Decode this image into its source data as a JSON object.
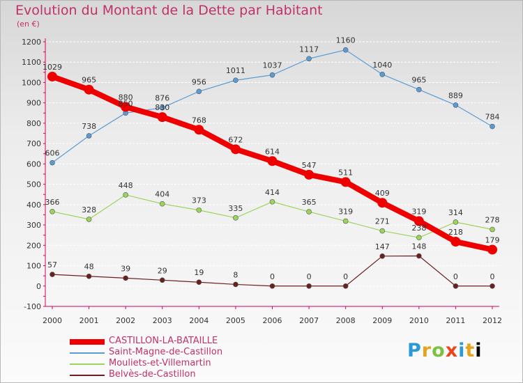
{
  "chart_data": {
    "type": "line",
    "title": "Evolution du Montant de la Dette par Habitant",
    "subtitle": "(en €)",
    "x": [
      "2000",
      "2001",
      "2002",
      "2003",
      "2004",
      "2005",
      "2006",
      "2007",
      "2008",
      "2009",
      "2010",
      "2011",
      "2012"
    ],
    "ylim": [
      -100,
      1200
    ],
    "yticks": [
      -100,
      0,
      100,
      200,
      300,
      400,
      500,
      600,
      700,
      800,
      900,
      1000,
      1100,
      1200
    ],
    "grid": true,
    "legend_position": "bottom-left",
    "series": [
      {
        "name": "CASTILLON-LA-BATAILLE",
        "color": "#ee0000",
        "values": [
          1029,
          965,
          880,
          830,
          768,
          672,
          614,
          547,
          511,
          409,
          319,
          218,
          179
        ]
      },
      {
        "name": "Saint-Magne-de-Castillon",
        "color": "#5b9bd5",
        "values": [
          606,
          738,
          850,
          876,
          956,
          1011,
          1037,
          1117,
          1160,
          1040,
          965,
          889,
          784
        ]
      },
      {
        "name": "Mouliets-et-Villemartin",
        "color": "#9bd45b",
        "values": [
          366,
          328,
          448,
          404,
          373,
          335,
          414,
          365,
          319,
          271,
          238,
          314,
          278
        ]
      },
      {
        "name": "Belvès-de-Castillon",
        "color": "#6b1f1f",
        "values": [
          57,
          48,
          39,
          29,
          19,
          8,
          0,
          0,
          0,
          147,
          148,
          0,
          0
        ]
      }
    ]
  },
  "logo": {
    "letters": [
      "P",
      "r",
      "o",
      "x",
      "i",
      "t",
      "i"
    ]
  }
}
